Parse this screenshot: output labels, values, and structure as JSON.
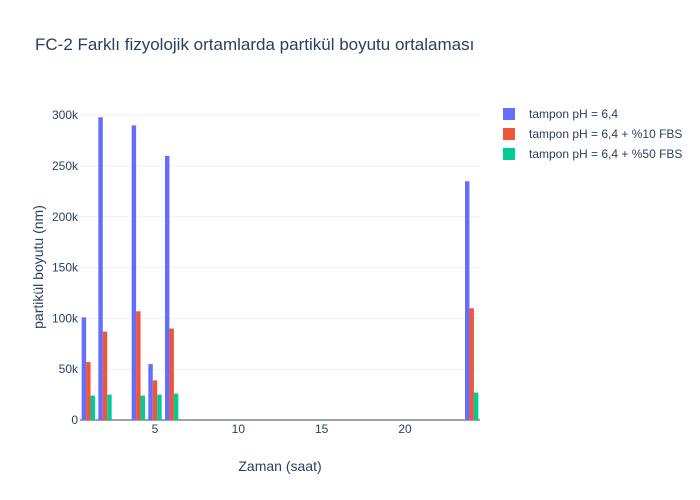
{
  "chart_data": {
    "type": "bar",
    "title": "FC-2 Farklı fizyolojik ortamlarda partikül boyutu ortalaması",
    "xlabel": "Zaman (saat)",
    "ylabel": "partikül boyutu (nm)",
    "xlim": [
      0.5,
      24.5
    ],
    "ylim": [
      0,
      315000
    ],
    "x_ticks": [
      5,
      10,
      15,
      20
    ],
    "x_tick_labels": [
      "5",
      "10",
      "15",
      "20"
    ],
    "y_ticks": [
      0,
      50000,
      100000,
      150000,
      200000,
      250000,
      300000
    ],
    "y_tick_labels": [
      "0",
      "50k",
      "100k",
      "150k",
      "200k",
      "250k",
      "300k"
    ],
    "grid": true,
    "legend_position": "top-right",
    "x": [
      1,
      2,
      4,
      5,
      6,
      24
    ],
    "series": [
      {
        "name": "tampon pH = 6,4",
        "color": "#636efa",
        "values": [
          101000,
          298000,
          290000,
          55000,
          260000,
          235000
        ]
      },
      {
        "name": "tampon pH = 6,4 + %10 FBS",
        "color": "#ef553b",
        "values": [
          57000,
          87000,
          107000,
          39000,
          90000,
          110000
        ]
      },
      {
        "name": "tampon pH = 6,4 + %50 FBS",
        "color": "#00cc96",
        "values": [
          24000,
          25000,
          24000,
          25000,
          26000,
          27000
        ]
      }
    ]
  }
}
